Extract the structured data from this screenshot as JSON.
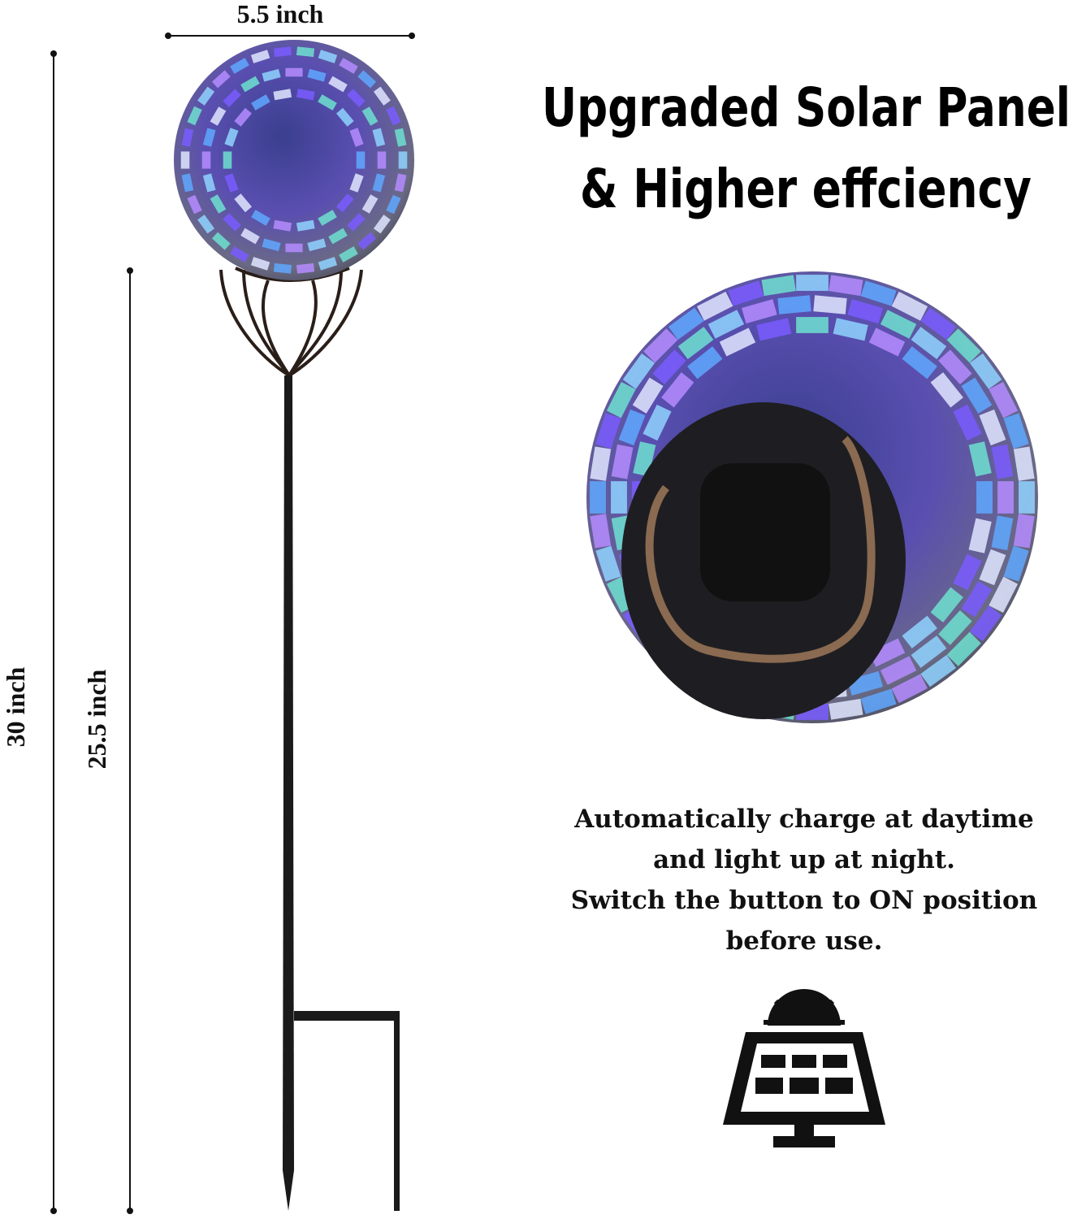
{
  "dimensions": {
    "width": "5.5 inch",
    "total_height": "30 inch",
    "stake_height": "25.5 inch"
  },
  "headline": [
    "Upgraded Solar Panel",
    "& Higher effciency"
  ],
  "description": [
    "Automatically charge at daytime",
    "and light up at night.",
    "Switch the button to ON position",
    "before use."
  ]
}
